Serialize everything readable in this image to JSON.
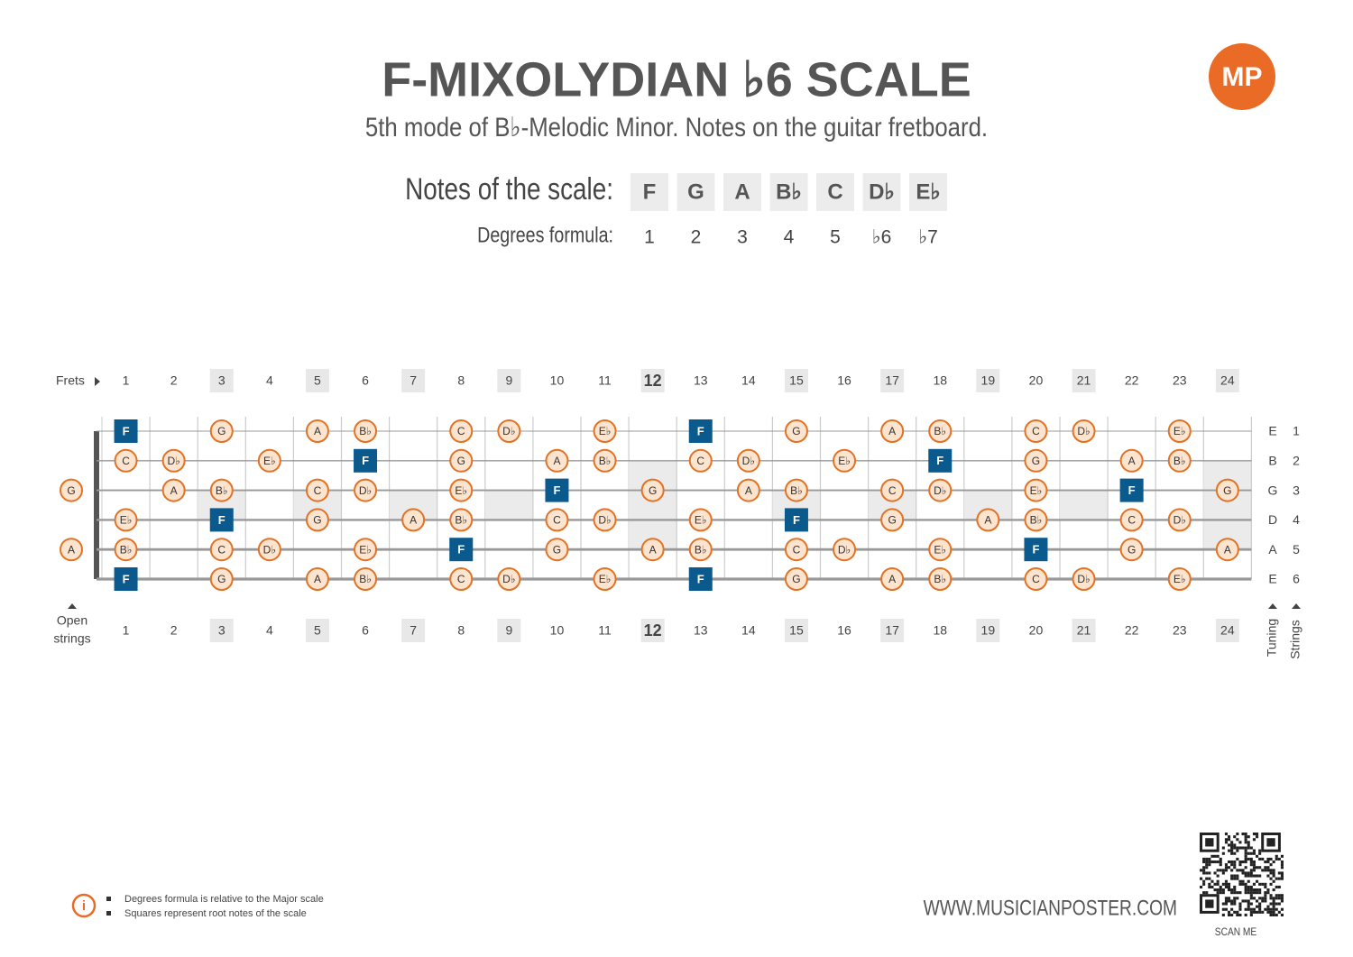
{
  "logo": "MP",
  "header": {
    "title": "F-MIXOLYDIAN ♭6 SCALE",
    "subtitle": "5th mode of B♭-Melodic Minor. Notes on the guitar fretboard."
  },
  "scale": {
    "notes_label": "Notes of the scale:",
    "notes": [
      "F",
      "G",
      "A",
      "B♭",
      "C",
      "D♭",
      "E♭"
    ],
    "degrees_label": "Degrees formula:",
    "degrees": [
      "1",
      "2",
      "3",
      "4",
      "5",
      "♭6",
      "♭7"
    ]
  },
  "fretboard": {
    "frets_label": "Frets",
    "frets": [
      1,
      2,
      3,
      4,
      5,
      6,
      7,
      8,
      9,
      10,
      11,
      12,
      13,
      14,
      15,
      16,
      17,
      18,
      19,
      20,
      21,
      22,
      23,
      24
    ],
    "marker_frets": [
      3,
      5,
      7,
      9,
      12,
      15,
      17,
      19,
      21,
      24
    ],
    "double_marker_frets": [
      12,
      24
    ],
    "bold_fret": 12,
    "open_strings_label": [
      "Open",
      "strings"
    ],
    "tuning_label": "Tuning",
    "strings_label": "Strings",
    "strings": [
      {
        "tuning": "E",
        "number": 1,
        "notes": [
          null,
          "F",
          null,
          "G",
          null,
          "A",
          "B♭",
          null,
          "C",
          "D♭",
          null,
          "E♭",
          null,
          "F",
          null,
          "G",
          null,
          "A",
          "B♭",
          null,
          "C",
          "D♭",
          null,
          "E♭",
          null
        ]
      },
      {
        "tuning": "B",
        "number": 2,
        "notes": [
          null,
          "C",
          "D♭",
          null,
          "E♭",
          null,
          "F",
          null,
          "G",
          null,
          "A",
          "B♭",
          null,
          "C",
          "D♭",
          null,
          "E♭",
          null,
          "F",
          null,
          "G",
          null,
          "A",
          "B♭",
          null
        ]
      },
      {
        "tuning": "G",
        "number": 3,
        "notes": [
          "G",
          null,
          "A",
          "B♭",
          null,
          "C",
          "D♭",
          null,
          "E♭",
          null,
          "F",
          null,
          "G",
          null,
          "A",
          "B♭",
          null,
          "C",
          "D♭",
          null,
          "E♭",
          null,
          "F",
          null,
          "G"
        ]
      },
      {
        "tuning": "D",
        "number": 4,
        "notes": [
          null,
          "E♭",
          null,
          "F",
          null,
          "G",
          null,
          "A",
          "B♭",
          null,
          "C",
          "D♭",
          null,
          "E♭",
          null,
          "F",
          null,
          "G",
          null,
          "A",
          "B♭",
          null,
          "C",
          "D♭",
          null
        ]
      },
      {
        "tuning": "A",
        "number": 5,
        "notes": [
          "A",
          "B♭",
          null,
          "C",
          "D♭",
          null,
          "E♭",
          null,
          "F",
          null,
          "G",
          null,
          "A",
          "B♭",
          null,
          "C",
          "D♭",
          null,
          "E♭",
          null,
          "F",
          null,
          "G",
          null,
          "A"
        ]
      },
      {
        "tuning": "E",
        "number": 6,
        "notes": [
          null,
          "F",
          null,
          "G",
          null,
          "A",
          "B♭",
          null,
          "C",
          "D♭",
          null,
          "E♭",
          null,
          "F",
          null,
          "G",
          null,
          "A",
          "B♭",
          null,
          "C",
          "D♭",
          null,
          "E♭",
          null
        ]
      }
    ]
  },
  "footer": {
    "notes": [
      "Degrees formula is relative to the Major scale",
      "Squares represent root notes of the scale"
    ],
    "website": "WWW.MUSICIANPOSTER.COM",
    "scan": "SCAN ME"
  }
}
